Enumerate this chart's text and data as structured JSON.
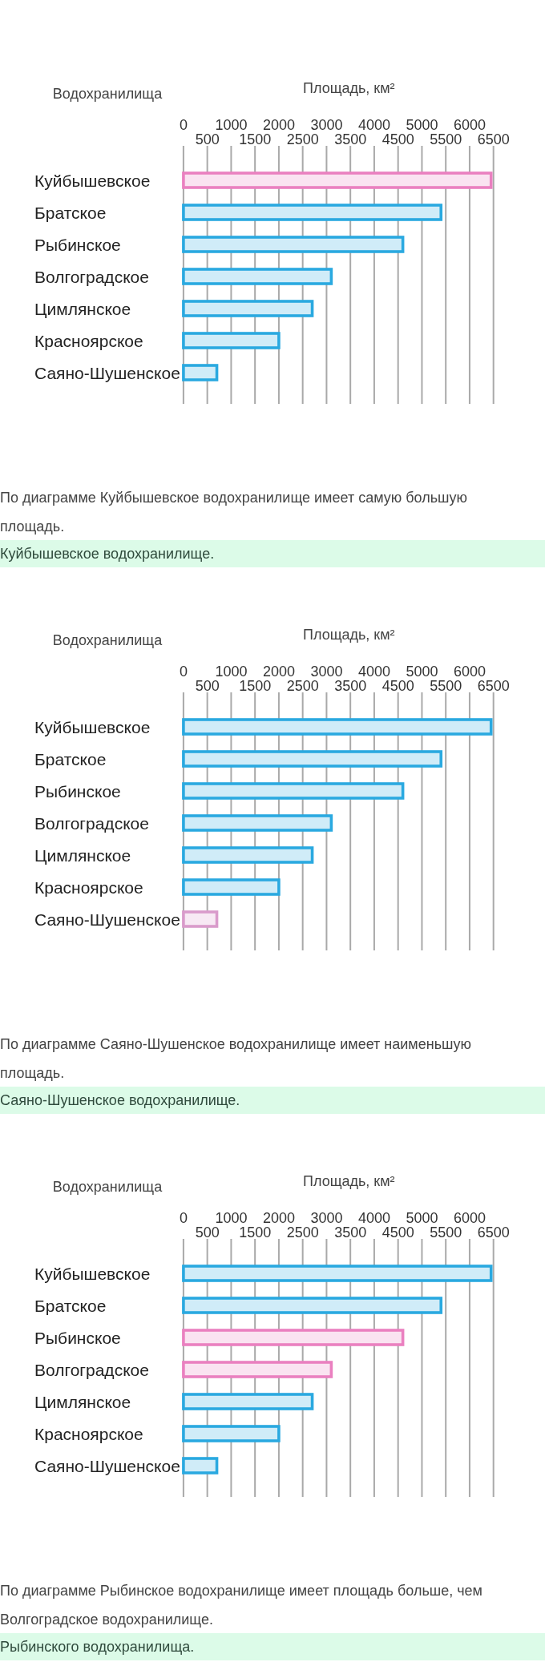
{
  "chart_data": [
    {
      "type": "bar",
      "orientation": "horizontal",
      "xlabel": "Площадь, км²",
      "ylabel": "Водохранилища",
      "categories": [
        "Куйбышевское",
        "Братское",
        "Рыбинское",
        "Волгоградское",
        "Цимлянское",
        "Красноярское",
        "Саяно-Шушенское"
      ],
      "values": [
        6450,
        5400,
        4600,
        3100,
        2700,
        2000,
        700
      ],
      "colors": [
        "#ea80c0",
        "#2aa9e0",
        "#2aa9e0",
        "#2aa9e0",
        "#2aa9e0",
        "#2aa9e0",
        "#2aa9e0"
      ],
      "xlim": [
        0,
        6500
      ],
      "xticks": [
        0,
        1000,
        2000,
        3000,
        4000,
        5000,
        6000
      ],
      "x2lim": [
        0,
        6500
      ],
      "x2ticks": [
        500,
        1500,
        2500,
        3500,
        4500,
        5500,
        6500
      ],
      "grid": true,
      "annotations": [
        "По диаграмме Куйбышевское водохранилище имеет самую большую площадь.",
        "Куйбышевское водохранилище."
      ]
    },
    {
      "type": "bar",
      "orientation": "horizontal",
      "xlabel": "Площадь, км²",
      "ylabel": "Водохранилища",
      "categories": [
        "Куйбышевское",
        "Братское",
        "Рыбинское",
        "Волгоградское",
        "Цимлянское",
        "Красноярское",
        "Саяно-Шушенское"
      ],
      "values": [
        6450,
        5400,
        4600,
        3100,
        2700,
        2000,
        700
      ],
      "colors": [
        "#2aa9e0",
        "#2aa9e0",
        "#2aa9e0",
        "#2aa9e0",
        "#2aa9e0",
        "#2aa9e0",
        "#d99bcb"
      ],
      "xlim": [
        0,
        6500
      ],
      "xticks": [
        0,
        1000,
        2000,
        3000,
        4000,
        5000,
        6000
      ],
      "x2lim": [
        0,
        6500
      ],
      "x2ticks": [
        500,
        1500,
        2500,
        3500,
        4500,
        5500,
        6500
      ],
      "grid": true,
      "annotations": [
        "По диаграмме Саяно-Шушенское водохранилище имеет наименьшую площадь.",
        "Саяно-Шушенское водохранилище."
      ]
    },
    {
      "type": "bar",
      "orientation": "horizontal",
      "xlabel": "Площадь, км²",
      "ylabel": "Водохранилища",
      "categories": [
        "Куйбышевское",
        "Братское",
        "Рыбинское",
        "Волгоградское",
        "Цимлянское",
        "Красноярское",
        "Саяно-Шушенское"
      ],
      "values": [
        6450,
        5400,
        4600,
        3100,
        2700,
        2000,
        700
      ],
      "colors": [
        "#2aa9e0",
        "#2aa9e0",
        "#ea80c0",
        "#ea80c0",
        "#2aa9e0",
        "#2aa9e0",
        "#2aa9e0"
      ],
      "xlim": [
        0,
        6500
      ],
      "xticks": [
        0,
        1000,
        2000,
        3000,
        4000,
        5000,
        6000
      ],
      "x2lim": [
        0,
        6500
      ],
      "x2ticks": [
        500,
        1500,
        2500,
        3500,
        4500,
        5500,
        6500
      ],
      "grid": true,
      "annotations": [
        "По диаграмме Рыбинское водохранилище имеет площадь больше, чем Волгоградское водохранилище.",
        "Рыбинского водохранилища."
      ]
    }
  ]
}
